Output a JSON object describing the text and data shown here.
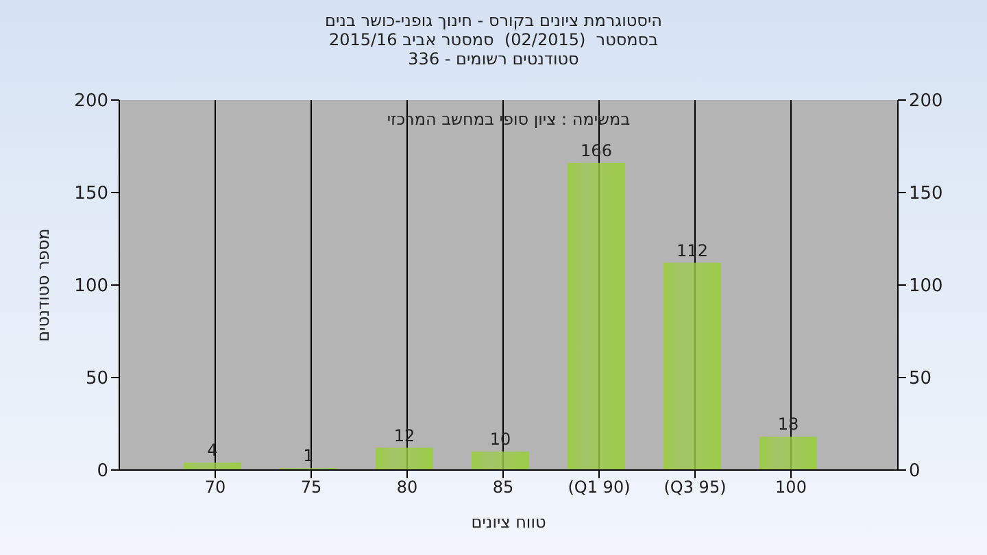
{
  "chart_data": {
    "type": "bar",
    "title": "היסטוגרמת ציונים בקורס - חינוך גופני-כושר בנים",
    "subtitle": "בסמסטר  (02/2015)  סמסטר אביב 2015/16\nסטודנטים רשומים - 336",
    "xlabel": "טווח ציונים",
    "ylabel": "מספר סטודנטים",
    "annotations": [
      "במשימה : ציון סופי במחשב המרכזי"
    ],
    "categories": [
      "70",
      "75",
      "80",
      "85",
      "(Q1 90)",
      "(Q3 95)",
      "100"
    ],
    "values": [
      4,
      1,
      12,
      10,
      166,
      112,
      18
    ],
    "color": "#9ccc48",
    "ylim": [
      0,
      200
    ],
    "yticks": [
      0,
      50,
      100,
      150,
      200
    ],
    "y2lim": [
      0,
      200
    ],
    "y2ticks": [
      0,
      50,
      100,
      150,
      200
    ],
    "grid": "x",
    "data_labels": true
  }
}
